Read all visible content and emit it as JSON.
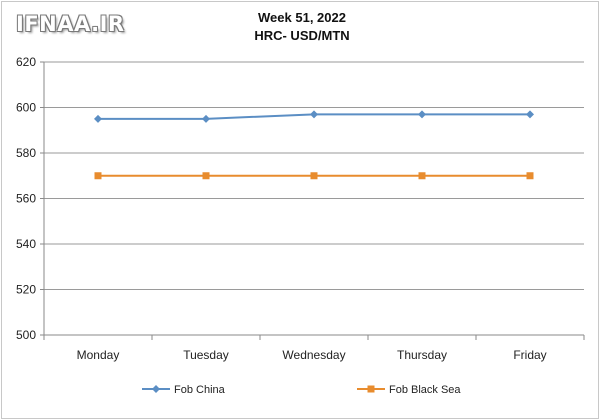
{
  "watermark": "IFNAA.IR",
  "chart_data": {
    "type": "line",
    "title": "Week 51, 2022",
    "subtitle": "HRC- USD/MTN",
    "categories": [
      "Monday",
      "Tuesday",
      "Wednesday",
      "Thursday",
      "Friday"
    ],
    "series": [
      {
        "name": "Fob China",
        "values": [
          595,
          595,
          597,
          597,
          597
        ],
        "color": "#5b8ec4",
        "marker": "diamond"
      },
      {
        "name": "Fob Black Sea",
        "values": [
          570,
          570,
          570,
          570,
          570
        ],
        "color": "#e88c2e",
        "marker": "square"
      }
    ],
    "ylim": [
      500,
      620
    ],
    "yticks": [
      500,
      520,
      540,
      560,
      580,
      600,
      620
    ],
    "grid": "horizontal",
    "legend": "bottom"
  }
}
